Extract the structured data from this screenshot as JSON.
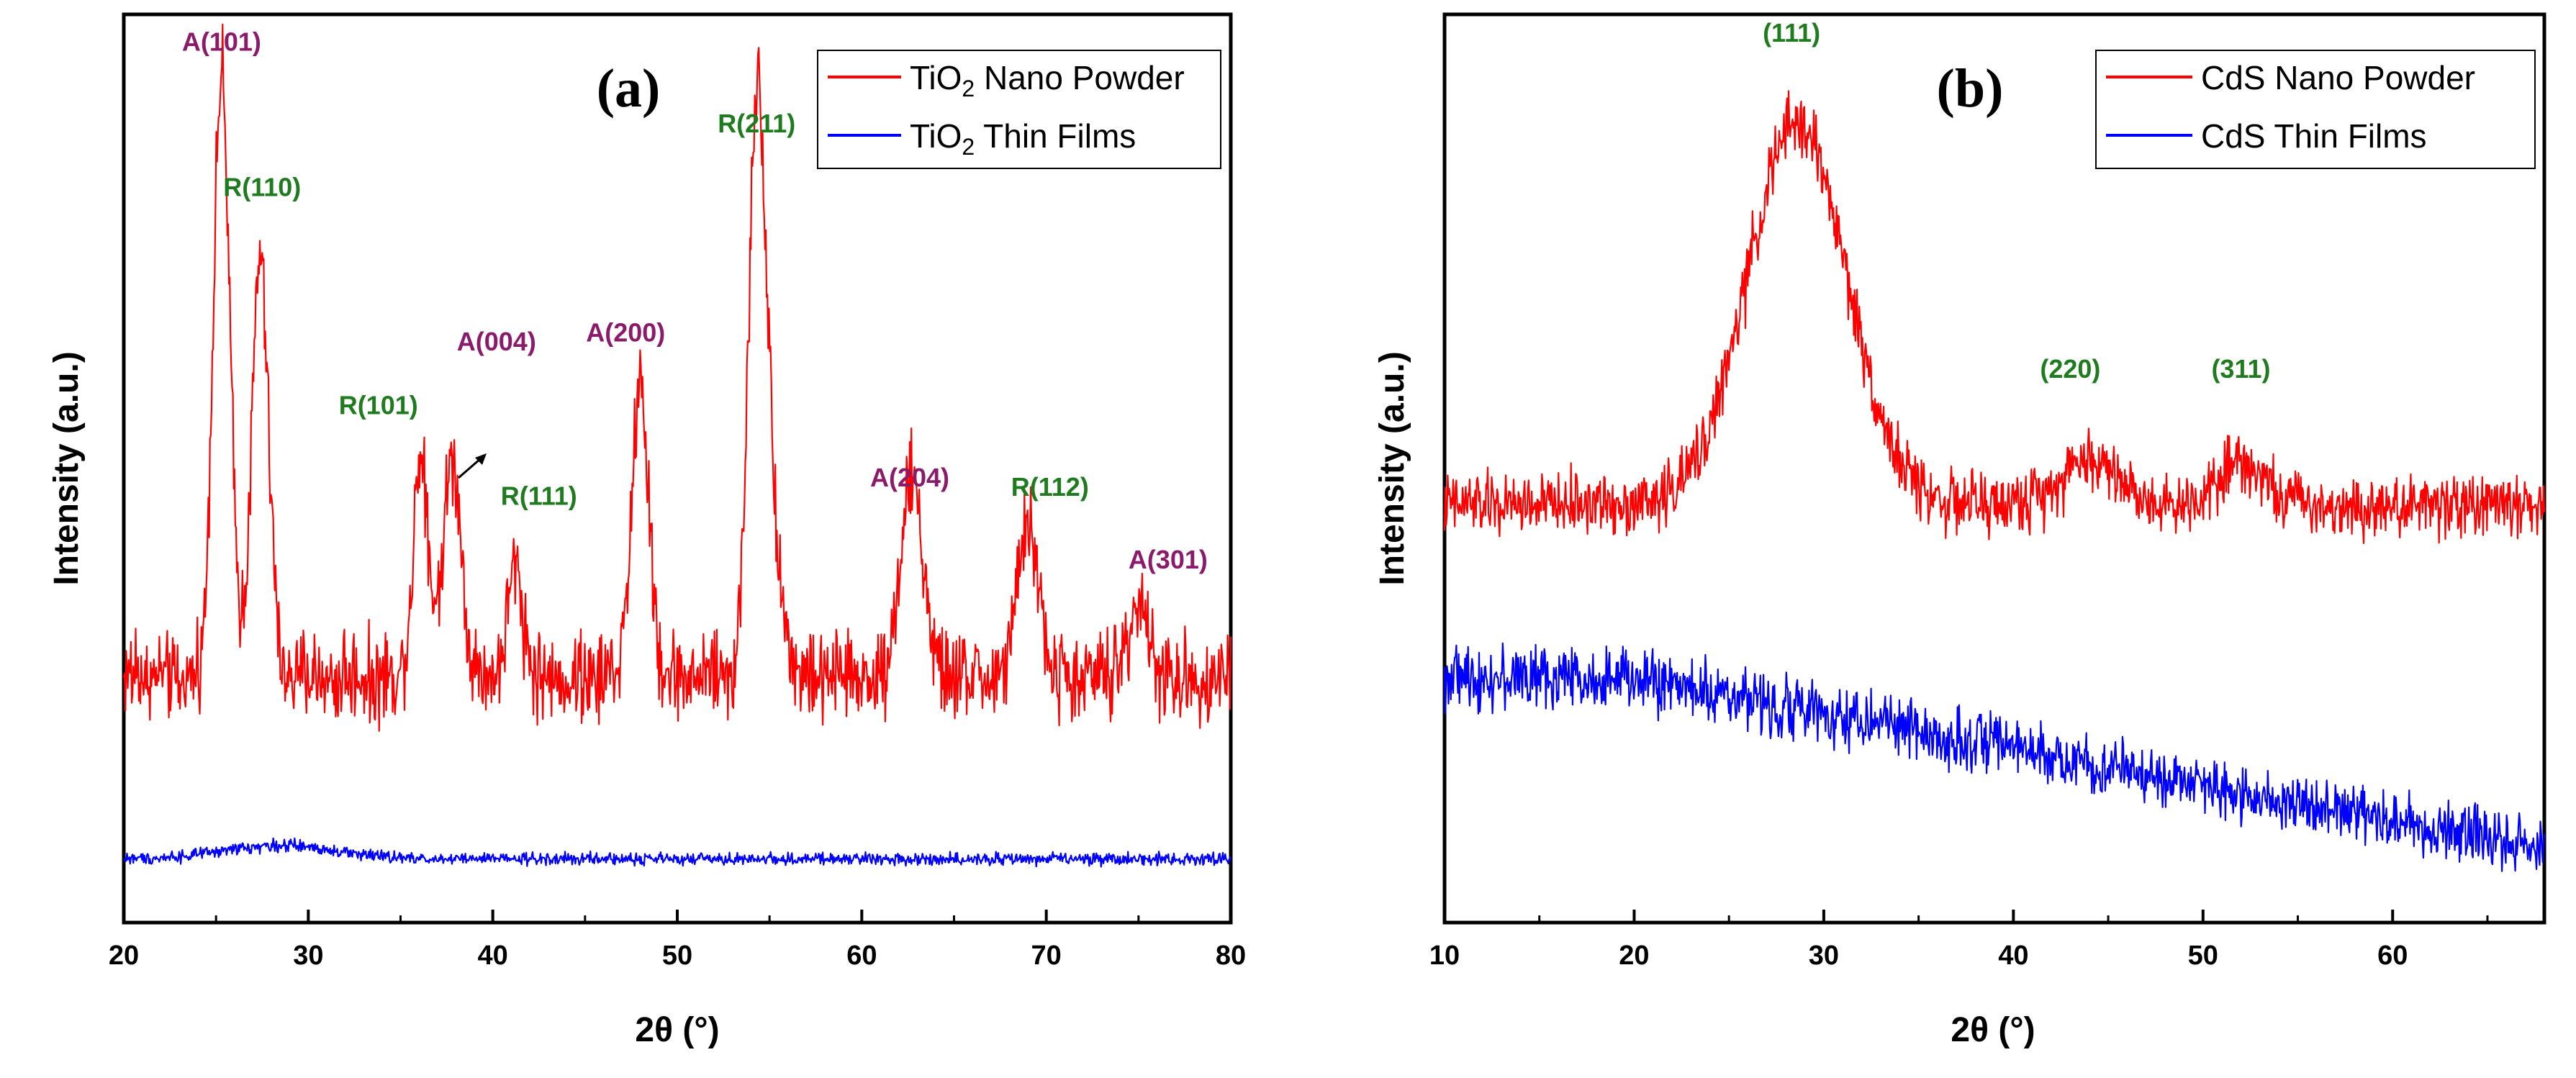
{
  "chart_data": [
    {
      "type": "line",
      "panel_label": "(a)",
      "xlabel": "2θ (°)",
      "ylabel": "Intensity (a.u.)",
      "xlim": [
        20,
        80
      ],
      "ylim": [
        0,
        100
      ],
      "xticks": [
        20,
        30,
        40,
        50,
        60,
        70,
        80
      ],
      "show_y_ticks": false,
      "legend_position": "top-right",
      "series": [
        {
          "name": "TiO2 Nano Powder",
          "legend_main": "TiO",
          "legend_sub": "2",
          "legend_rest": " Nano Powder",
          "color": "#ff0000",
          "baseline": 27,
          "noise": 6,
          "peaks": [
            {
              "x": 25.3,
              "height": 66,
              "width": 0.45
            },
            {
              "x": 27.4,
              "height": 46,
              "width": 0.45
            },
            {
              "x": 36.1,
              "height": 25,
              "width": 0.4
            },
            {
              "x": 37.8,
              "height": 24,
              "width": 0.5
            },
            {
              "x": 41.2,
              "height": 12,
              "width": 0.4
            },
            {
              "x": 48.0,
              "height": 33,
              "width": 0.45
            },
            {
              "x": 54.3,
              "height": 57,
              "width": 0.45
            },
            {
              "x": 55.0,
              "height": 18,
              "width": 0.6
            },
            {
              "x": 62.7,
              "height": 22,
              "width": 0.6
            },
            {
              "x": 69.0,
              "height": 17,
              "width": 0.55
            },
            {
              "x": 75.0,
              "height": 9,
              "width": 0.5
            }
          ]
        },
        {
          "name": "TiO2 Thin Films",
          "legend_main": "TiO",
          "legend_sub": "2",
          "legend_rest": " Thin Films",
          "color": "#0000ff",
          "baseline": 7,
          "noise": 0.8,
          "peaks": [
            {
              "x": 28.5,
              "height": 1.5,
              "width": 3
            }
          ]
        }
      ],
      "annotations": [
        {
          "text": "A(101)",
          "x": 25.3,
          "y": 96,
          "color": "#8b1a6b"
        },
        {
          "text": "R(110)",
          "x": 27.5,
          "y": 80,
          "color": "#1e7b1e"
        },
        {
          "text": "R(101)",
          "x": 33.8,
          "y": 56,
          "color": "#1e7b1e"
        },
        {
          "text": "A(004)",
          "x": 40.2,
          "y": 63,
          "color": "#8b1a6b"
        },
        {
          "text": "R(111)",
          "x": 42.5,
          "y": 46,
          "color": "#1e7b1e"
        },
        {
          "text": "A(200)",
          "x": 47.2,
          "y": 64,
          "color": "#8b1a6b"
        },
        {
          "text": "R(211)",
          "x": 54.3,
          "y": 87,
          "color": "#1e7b1e"
        },
        {
          "text": "A(204)",
          "x": 62.6,
          "y": 48,
          "color": "#8b1a6b"
        },
        {
          "text": "R(112)",
          "x": 70.2,
          "y": 47,
          "color": "#1e7b1e"
        },
        {
          "text": "A(301)",
          "x": 76.6,
          "y": 39,
          "color": "#8b1a6b"
        }
      ]
    },
    {
      "type": "line",
      "panel_label": "(b)",
      "xlabel": "2θ (°)",
      "ylabel": "Intensity (a.u.)",
      "xlim": [
        10,
        68
      ],
      "ylim": [
        0,
        100
      ],
      "xticks": [
        10,
        20,
        30,
        40,
        50,
        60
      ],
      "show_y_ticks": false,
      "legend_position": "top-right",
      "series": [
        {
          "name": "CdS Nano Powder",
          "legend_main": "CdS Nano Powder",
          "legend_sub": "",
          "legend_rest": "",
          "color": "#ff0000",
          "baseline": 46,
          "noise": 4,
          "peaks": [
            {
              "x": 28.6,
              "height": 42,
              "width": 2.6
            },
            {
              "x": 44.0,
              "height": 5,
              "width": 1.5
            },
            {
              "x": 52.0,
              "height": 5,
              "width": 1.2
            }
          ]
        },
        {
          "name": "CdS Thin Films",
          "legend_main": "CdS Thin Films",
          "legend_sub": "",
          "legend_rest": "",
          "color": "#0000ff",
          "baseline": 8,
          "noise": 4,
          "decay": {
            "start": 20,
            "end": 68,
            "from": 27,
            "to": 8
          }
        }
      ],
      "annotations": [
        {
          "text": "(111)",
          "x": 28.3,
          "y": 97,
          "color": "#1e7b1e"
        },
        {
          "text": "(220)",
          "x": 43.0,
          "y": 60,
          "color": "#1e7b1e"
        },
        {
          "text": "(311)",
          "x": 52.0,
          "y": 60,
          "color": "#1e7b1e"
        }
      ]
    }
  ]
}
